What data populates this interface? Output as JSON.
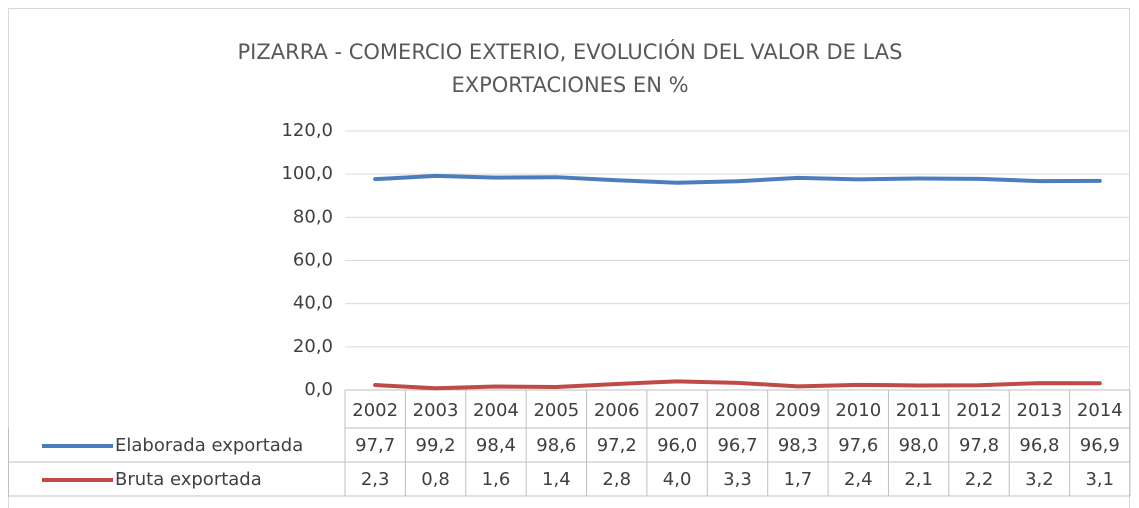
{
  "chart_data": {
    "type": "line",
    "title": "PIZARRA - COMERCIO EXTERIO, EVOLUCIÓN DEL VALOR DE LAS EXPORTACIONES EN %",
    "categories": [
      "2002",
      "2003",
      "2004",
      "2005",
      "2006",
      "2007",
      "2008",
      "2009",
      "2010",
      "2011",
      "2012",
      "2013",
      "2014"
    ],
    "series": [
      {
        "name": "Elaborada exportada",
        "color": "#4a7ebb",
        "values": [
          97.7,
          99.2,
          98.4,
          98.6,
          97.2,
          96.0,
          96.7,
          98.3,
          97.6,
          98.0,
          97.8,
          96.8,
          96.9
        ],
        "value_labels": [
          "97,7",
          "99,2",
          "98,4",
          "98,6",
          "97,2",
          "96,0",
          "96,7",
          "98,3",
          "97,6",
          "98,0",
          "97,8",
          "96,8",
          "96,9"
        ]
      },
      {
        "name": "Bruta exportada",
        "color": "#be4b48",
        "values": [
          2.3,
          0.8,
          1.6,
          1.4,
          2.8,
          4.0,
          3.3,
          1.7,
          2.4,
          2.1,
          2.2,
          3.2,
          3.1
        ],
        "value_labels": [
          "2,3",
          "0,8",
          "1,6",
          "1,4",
          "2,8",
          "4,0",
          "3,3",
          "1,7",
          "2,4",
          "2,1",
          "2,2",
          "3,2",
          "3,1"
        ]
      }
    ],
    "ylim": [
      0,
      120
    ],
    "yticks": [
      {
        "value": 0,
        "label": "0,0"
      },
      {
        "value": 20,
        "label": "20,0"
      },
      {
        "value": 40,
        "label": "40,0"
      },
      {
        "value": 60,
        "label": "60,0"
      },
      {
        "value": 80,
        "label": "80,0"
      },
      {
        "value": 100,
        "label": "100,0"
      },
      {
        "value": 120,
        "label": "120,0"
      }
    ],
    "grid": true,
    "data_table": true
  }
}
